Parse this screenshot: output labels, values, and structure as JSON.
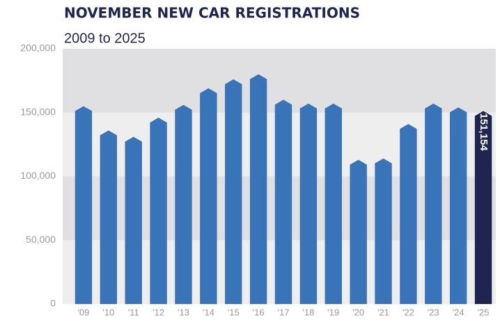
{
  "chart_data": {
    "type": "bar",
    "title": "NOVEMBER NEW CAR REGISTRATIONS",
    "subtitle": "2009 to 2025",
    "categories": [
      "'09",
      "'10",
      "'11",
      "'12",
      "'13",
      "'14",
      "'15",
      "'16",
      "'17",
      "'18",
      "'19",
      "'20",
      "'21",
      "'22",
      "'23",
      "'24",
      "'25"
    ],
    "values": [
      155000,
      136000,
      131000,
      146000,
      156000,
      169000,
      176000,
      180000,
      160000,
      157000,
      157000,
      113000,
      114000,
      141000,
      157000,
      154000,
      151154
    ],
    "value_labels": [
      null,
      null,
      null,
      null,
      null,
      null,
      null,
      null,
      null,
      null,
      null,
      null,
      null,
      null,
      null,
      null,
      "151,154"
    ],
    "colors": [
      "#3a74b8",
      "#3a74b8",
      "#3a74b8",
      "#3a74b8",
      "#3a74b8",
      "#3a74b8",
      "#3a74b8",
      "#3a74b8",
      "#3a74b8",
      "#3a74b8",
      "#3a74b8",
      "#3a74b8",
      "#3a74b8",
      "#3a74b8",
      "#3a74b8",
      "#3a74b8",
      "#1f2451"
    ],
    "ylim": [
      0,
      200000
    ],
    "yticks": [
      0,
      {
        "value": 50000,
        "label": "50,000"
      },
      {
        "value": 100000,
        "label": "100,000"
      },
      {
        "value": 150000,
        "label": "150,000"
      },
      {
        "value": 200000,
        "label": "200,000"
      }
    ],
    "banded_grid": true
  }
}
